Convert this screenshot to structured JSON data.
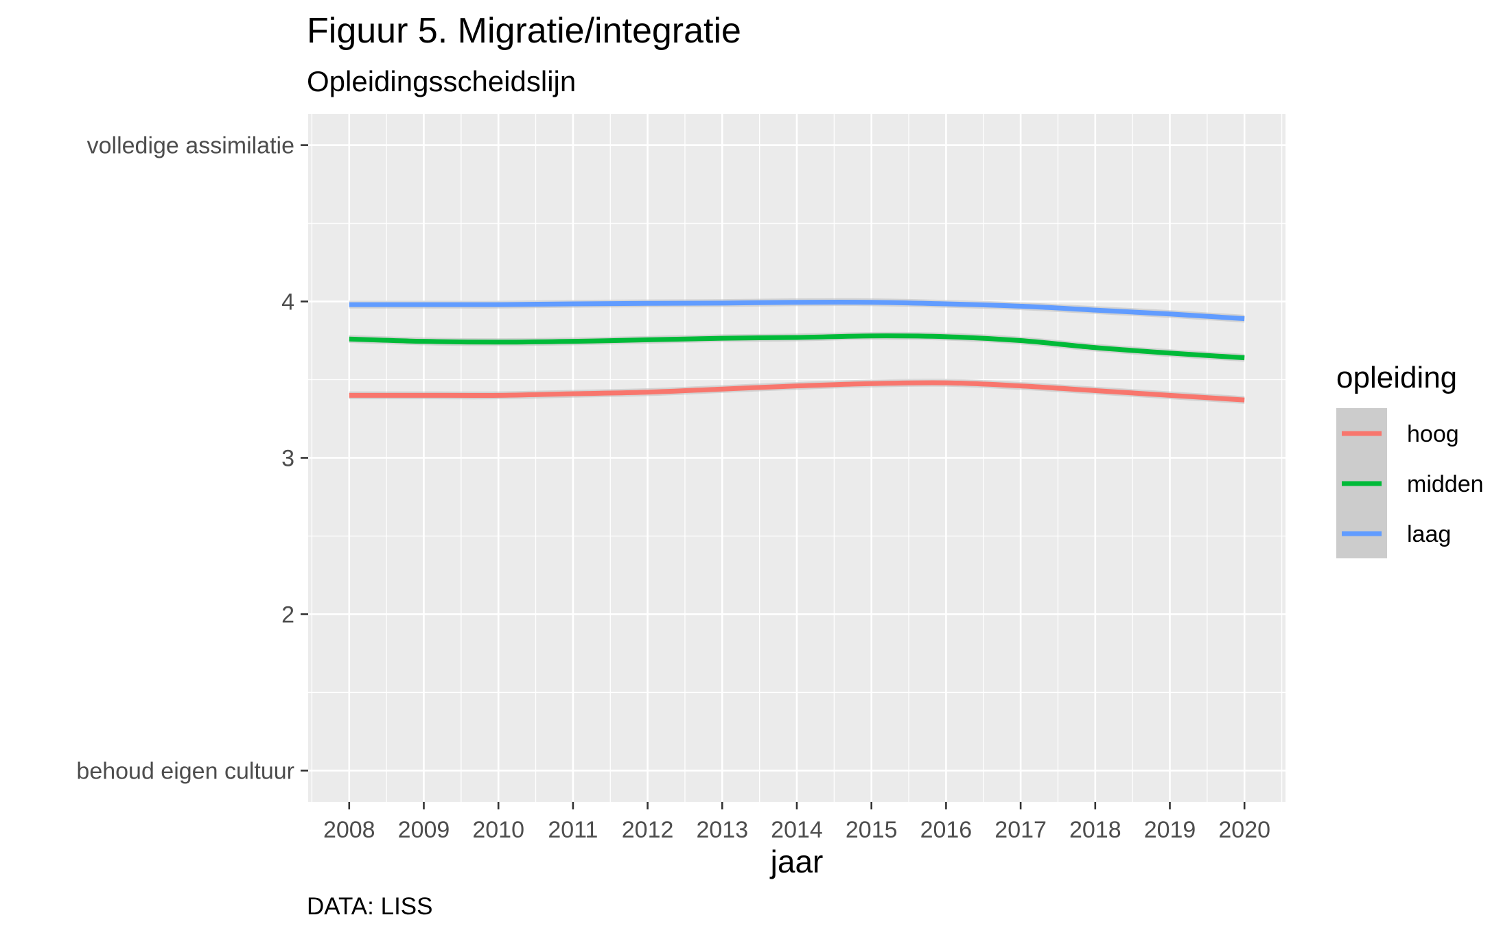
{
  "chart_data": {
    "type": "line",
    "title": "Figuur 5. Migratie/integratie",
    "subtitle": "Opleidingsscheidslijn",
    "xlabel": "jaar",
    "ylabel": "",
    "caption": "DATA: LISS",
    "x": [
      2008,
      2009,
      2010,
      2011,
      2012,
      2013,
      2014,
      2015,
      2016,
      2017,
      2018,
      2019,
      2020
    ],
    "xlim": [
      2007.45,
      2020.55
    ],
    "ylim": [
      0.8,
      5.2
    ],
    "y_ticks": [
      {
        "value": 1,
        "label": "behoud eigen cultuur"
      },
      {
        "value": 2,
        "label": "2"
      },
      {
        "value": 3,
        "label": "3"
      },
      {
        "value": 4,
        "label": "4"
      },
      {
        "value": 5,
        "label": "volledige assimilatie"
      }
    ],
    "x_tick_labels": [
      "2008",
      "2009",
      "2010",
      "2011",
      "2012",
      "2013",
      "2014",
      "2015",
      "2016",
      "2017",
      "2018",
      "2019",
      "2020"
    ],
    "grid": true,
    "legend": {
      "title": "opleiding",
      "position": "right"
    },
    "series": [
      {
        "name": "hoog",
        "color": "#F8766D",
        "values": [
          3.4,
          3.4,
          3.4,
          3.41,
          3.42,
          3.44,
          3.46,
          3.475,
          3.48,
          3.46,
          3.43,
          3.4,
          3.37
        ]
      },
      {
        "name": "midden",
        "color": "#00BA38",
        "values": [
          3.76,
          3.745,
          3.74,
          3.745,
          3.755,
          3.765,
          3.77,
          3.78,
          3.775,
          3.75,
          3.705,
          3.67,
          3.64
        ]
      },
      {
        "name": "laag",
        "color": "#619CFF",
        "values": [
          3.98,
          3.98,
          3.98,
          3.985,
          3.988,
          3.99,
          3.995,
          3.995,
          3.985,
          3.97,
          3.945,
          3.92,
          3.89
        ]
      }
    ],
    "panel_color": "#EBEBEB",
    "band_color": "#BEBEBE"
  }
}
